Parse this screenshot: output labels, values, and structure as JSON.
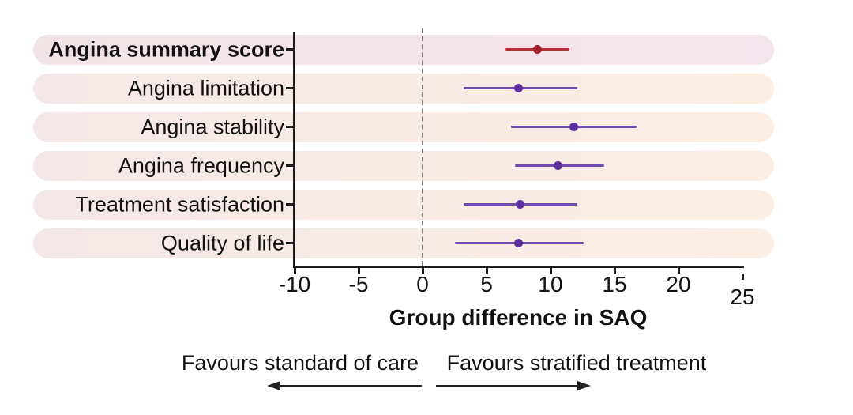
{
  "figure": {
    "footer": {
      "left_label": "Favours standard of care",
      "right_label": "Favours stratified treatment"
    },
    "colors": {
      "axis": "#1c1c1c",
      "zero_line": "#7d7d7d",
      "band_emphasis_start": "#f2e4e6",
      "band_emphasis_end": "#f3e5eb",
      "band_normal_start": "#f4e7e7",
      "band_normal_end": "#fdeee3",
      "primary_line": "#b43137",
      "primary_dot": "#a3202a",
      "secondary_line": "#714aae",
      "secondary_dot": "#5e2f9e"
    }
  },
  "chart_data": {
    "type": "forest",
    "title": "",
    "xlabel": "Group difference in SAQ",
    "xlim": [
      -10,
      25
    ],
    "x_ticks": [
      -10,
      -5,
      0,
      5,
      10,
      15,
      20,
      25
    ],
    "reference_line_x": 0,
    "grid": false,
    "legend": false,
    "rows": [
      {
        "label": "Angina summary score",
        "point": 9.0,
        "ci_lower": 6.5,
        "ci_upper": 11.5,
        "line_color": "#b43137",
        "dot_color": "#a3202a",
        "emphasis": true
      },
      {
        "label": "Angina limitation",
        "point": 7.5,
        "ci_lower": 3.2,
        "ci_upper": 12.1,
        "line_color": "#714aae",
        "dot_color": "#5e2f9e",
        "emphasis": false
      },
      {
        "label": "Angina stability",
        "point": 11.8,
        "ci_lower": 6.9,
        "ci_upper": 16.7,
        "line_color": "#714aae",
        "dot_color": "#5e2f9e",
        "emphasis": false
      },
      {
        "label": "Angina frequency",
        "point": 10.6,
        "ci_lower": 7.2,
        "ci_upper": 14.2,
        "line_color": "#714aae",
        "dot_color": "#5e2f9e",
        "emphasis": false
      },
      {
        "label": "Treatment satisfaction",
        "point": 7.6,
        "ci_lower": 3.2,
        "ci_upper": 12.1,
        "line_color": "#714aae",
        "dot_color": "#5e2f9e",
        "emphasis": false
      },
      {
        "label": "Quality of life",
        "point": 7.5,
        "ci_lower": 2.5,
        "ci_upper": 12.6,
        "line_color": "#714aae",
        "dot_color": "#5e2f9e",
        "emphasis": false
      }
    ],
    "annotations": [
      {
        "text": "Favours standard of care",
        "arrow": "left"
      },
      {
        "text": "Favours stratified treatment",
        "arrow": "right"
      }
    ]
  }
}
